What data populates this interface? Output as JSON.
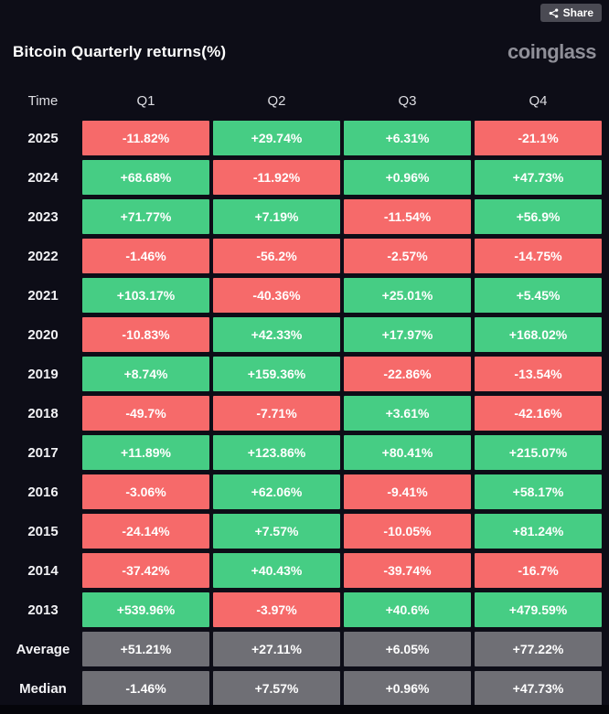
{
  "page": {
    "share_label": "Share",
    "title": "Bitcoin Quarterly returns(%)",
    "brand": "coinglass"
  },
  "colors": {
    "green": "#46cd84",
    "red": "#f66a6a",
    "gray": "#6f6f75",
    "background": "#0d0d17"
  },
  "table": {
    "columns": [
      "Time",
      "Q1",
      "Q2",
      "Q3",
      "Q4"
    ],
    "rows": [
      {
        "label": "2025",
        "cells": [
          {
            "text": "-11.82%",
            "color": "red"
          },
          {
            "text": "+29.74%",
            "color": "green"
          },
          {
            "text": "+6.31%",
            "color": "green"
          },
          {
            "text": "-21.1%",
            "color": "red"
          }
        ]
      },
      {
        "label": "2024",
        "cells": [
          {
            "text": "+68.68%",
            "color": "green"
          },
          {
            "text": "-11.92%",
            "color": "red"
          },
          {
            "text": "+0.96%",
            "color": "green"
          },
          {
            "text": "+47.73%",
            "color": "green"
          }
        ]
      },
      {
        "label": "2023",
        "cells": [
          {
            "text": "+71.77%",
            "color": "green"
          },
          {
            "text": "+7.19%",
            "color": "green"
          },
          {
            "text": "-11.54%",
            "color": "red"
          },
          {
            "text": "+56.9%",
            "color": "green"
          }
        ]
      },
      {
        "label": "2022",
        "cells": [
          {
            "text": "-1.46%",
            "color": "red"
          },
          {
            "text": "-56.2%",
            "color": "red"
          },
          {
            "text": "-2.57%",
            "color": "red"
          },
          {
            "text": "-14.75%",
            "color": "red"
          }
        ]
      },
      {
        "label": "2021",
        "cells": [
          {
            "text": "+103.17%",
            "color": "green"
          },
          {
            "text": "-40.36%",
            "color": "red"
          },
          {
            "text": "+25.01%",
            "color": "green"
          },
          {
            "text": "+5.45%",
            "color": "green"
          }
        ]
      },
      {
        "label": "2020",
        "cells": [
          {
            "text": "-10.83%",
            "color": "red"
          },
          {
            "text": "+42.33%",
            "color": "green"
          },
          {
            "text": "+17.97%",
            "color": "green"
          },
          {
            "text": "+168.02%",
            "color": "green"
          }
        ]
      },
      {
        "label": "2019",
        "cells": [
          {
            "text": "+8.74%",
            "color": "green"
          },
          {
            "text": "+159.36%",
            "color": "green"
          },
          {
            "text": "-22.86%",
            "color": "red"
          },
          {
            "text": "-13.54%",
            "color": "red"
          }
        ]
      },
      {
        "label": "2018",
        "cells": [
          {
            "text": "-49.7%",
            "color": "red"
          },
          {
            "text": "-7.71%",
            "color": "red"
          },
          {
            "text": "+3.61%",
            "color": "green"
          },
          {
            "text": "-42.16%",
            "color": "red"
          }
        ]
      },
      {
        "label": "2017",
        "cells": [
          {
            "text": "+11.89%",
            "color": "green"
          },
          {
            "text": "+123.86%",
            "color": "green"
          },
          {
            "text": "+80.41%",
            "color": "green"
          },
          {
            "text": "+215.07%",
            "color": "green"
          }
        ]
      },
      {
        "label": "2016",
        "cells": [
          {
            "text": "-3.06%",
            "color": "red"
          },
          {
            "text": "+62.06%",
            "color": "green"
          },
          {
            "text": "-9.41%",
            "color": "red"
          },
          {
            "text": "+58.17%",
            "color": "green"
          }
        ]
      },
      {
        "label": "2015",
        "cells": [
          {
            "text": "-24.14%",
            "color": "red"
          },
          {
            "text": "+7.57%",
            "color": "green"
          },
          {
            "text": "-10.05%",
            "color": "red"
          },
          {
            "text": "+81.24%",
            "color": "green"
          }
        ]
      },
      {
        "label": "2014",
        "cells": [
          {
            "text": "-37.42%",
            "color": "red"
          },
          {
            "text": "+40.43%",
            "color": "green"
          },
          {
            "text": "-39.74%",
            "color": "red"
          },
          {
            "text": "-16.7%",
            "color": "red"
          }
        ]
      },
      {
        "label": "2013",
        "cells": [
          {
            "text": "+539.96%",
            "color": "green"
          },
          {
            "text": "-3.97%",
            "color": "red"
          },
          {
            "text": "+40.6%",
            "color": "green"
          },
          {
            "text": "+479.59%",
            "color": "green"
          }
        ]
      },
      {
        "label": "Average",
        "cells": [
          {
            "text": "+51.21%",
            "color": "gray"
          },
          {
            "text": "+27.11%",
            "color": "gray"
          },
          {
            "text": "+6.05%",
            "color": "gray"
          },
          {
            "text": "+77.22%",
            "color": "gray"
          }
        ]
      },
      {
        "label": "Median",
        "cells": [
          {
            "text": "-1.46%",
            "color": "gray"
          },
          {
            "text": "+7.57%",
            "color": "gray"
          },
          {
            "text": "+0.96%",
            "color": "gray"
          },
          {
            "text": "+47.73%",
            "color": "gray"
          }
        ]
      }
    ]
  },
  "chart_data": {
    "type": "heatmap",
    "title": "Bitcoin Quarterly returns(%)",
    "columns": [
      "Q1",
      "Q2",
      "Q3",
      "Q4"
    ],
    "row_labels": [
      "2025",
      "2024",
      "2023",
      "2022",
      "2021",
      "2020",
      "2019",
      "2018",
      "2017",
      "2016",
      "2015",
      "2014",
      "2013",
      "Average",
      "Median"
    ],
    "values": [
      [
        -11.82,
        29.74,
        6.31,
        -21.1
      ],
      [
        68.68,
        -11.92,
        0.96,
        47.73
      ],
      [
        71.77,
        7.19,
        -11.54,
        56.9
      ],
      [
        -1.46,
        -56.2,
        -2.57,
        -14.75
      ],
      [
        103.17,
        -40.36,
        25.01,
        5.45
      ],
      [
        -10.83,
        42.33,
        17.97,
        168.02
      ],
      [
        8.74,
        159.36,
        -22.86,
        -13.54
      ],
      [
        -49.7,
        -7.71,
        3.61,
        -42.16
      ],
      [
        11.89,
        123.86,
        80.41,
        215.07
      ],
      [
        -3.06,
        62.06,
        -9.41,
        58.17
      ],
      [
        -24.14,
        7.57,
        -10.05,
        81.24
      ],
      [
        -37.42,
        40.43,
        -39.74,
        -16.7
      ],
      [
        539.96,
        -3.97,
        40.6,
        479.59
      ],
      [
        51.21,
        27.11,
        6.05,
        77.22
      ],
      [
        -1.46,
        7.57,
        0.96,
        47.73
      ]
    ],
    "legend": "green = positive quarterly return, red = negative quarterly return, gray = summary rows",
    "unit": "%"
  }
}
